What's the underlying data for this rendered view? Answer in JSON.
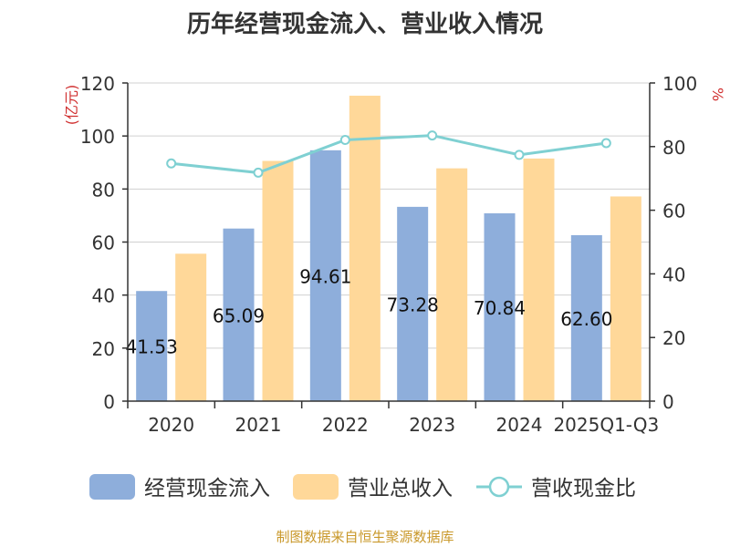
{
  "chart_data": {
    "type": "bar",
    "title": "历年经营现金流入、营业收入情况",
    "categories": [
      "2020",
      "2021",
      "2022",
      "2023",
      "2024",
      "2025Q1-Q3"
    ],
    "series": [
      {
        "name": "经营现金流入",
        "kind": "bar",
        "axis": "left",
        "color": "#8eaedb",
        "values": [
          41.53,
          65.09,
          94.61,
          73.28,
          70.84,
          62.6
        ],
        "labels": [
          "41.53",
          "65.09",
          "94.61",
          "73.28",
          "70.84",
          "62.60"
        ]
      },
      {
        "name": "营业总收入",
        "kind": "bar",
        "axis": "left",
        "color": "#ffd899",
        "values": [
          55.6,
          90.6,
          115.2,
          87.8,
          91.5,
          77.2
        ]
      },
      {
        "name": "营收现金比",
        "kind": "line",
        "axis": "right",
        "color": "#7fd0d2",
        "values": [
          74.7,
          71.8,
          82.1,
          83.5,
          77.4,
          81.1
        ]
      }
    ],
    "ylabel_left": "(亿元)",
    "ylabel_right": "%",
    "ylim_left": [
      0,
      120
    ],
    "ylim_right": [
      0,
      100
    ],
    "yticks_left": [
      "0",
      "20",
      "40",
      "60",
      "80",
      "100",
      "120"
    ],
    "yticks_right": [
      "0",
      "20",
      "40",
      "60",
      "80",
      "100"
    ],
    "grid": true,
    "legend_position": "bottom"
  },
  "source_note": "制图数据来自恒生聚源数据库"
}
